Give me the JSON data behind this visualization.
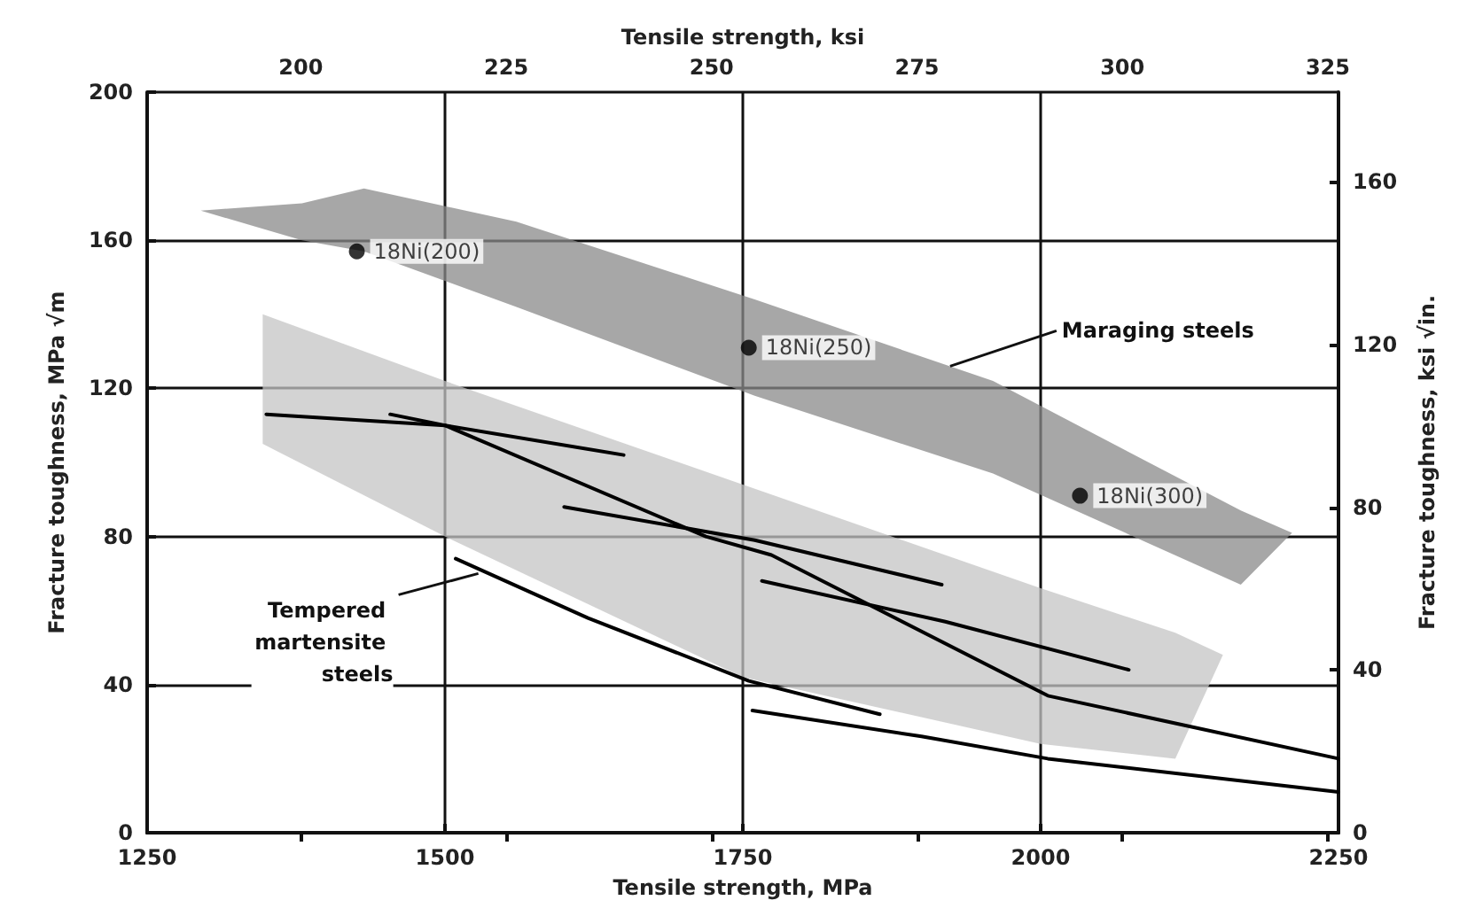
{
  "chart_data": {
    "type": "line",
    "xlabel": "Tensile strength, MPa",
    "x2label": "Tensile strength, ksi",
    "ylabel": "Fracture toughness, MPa √m",
    "y2label": "Fracture toughness, ksi √in.",
    "xlim": [
      1250,
      2250
    ],
    "xticks": [
      1250,
      1500,
      1750,
      2000,
      2250
    ],
    "x2lim": [
      181.3,
      326.3
    ],
    "x2ticks": [
      200,
      225,
      250,
      275,
      300,
      325
    ],
    "ylim": [
      0,
      200
    ],
    "yticks": [
      0,
      40,
      80,
      120,
      160,
      200
    ],
    "y2lim": [
      0,
      182
    ],
    "y2ticks": [
      0,
      40,
      80,
      120,
      160
    ],
    "grid": true,
    "legend": false,
    "marker": "none",
    "line_style": "solid",
    "series": [
      {
        "type": "area",
        "color": "#8a8a8a",
        "x": [
          1295,
          1380,
          1432,
          1560,
          1760,
          1960,
          2168,
          2211
        ],
        "values": [
          null,
          null,
          null,
          null,
          null,
          null,
          null,
          null
        ],
        "upper": [
          168,
          170,
          174,
          165,
          144,
          122,
          87,
          81
        ],
        "lower": [
          168,
          160,
          157,
          142,
          118,
          97,
          67,
          81
        ]
      },
      {
        "type": "area",
        "color": "#c4c4c4",
        "x": [
          1347,
          1500,
          1750,
          2000,
          2113,
          2153
        ],
        "values": [
          null,
          null,
          null,
          null,
          null,
          null
        ],
        "upper": [
          140,
          122,
          94,
          66,
          54,
          48
        ],
        "lower": [
          105,
          80,
          42,
          24,
          20,
          48
        ]
      },
      {
        "color": "#000000",
        "x": [
          1350,
          1500,
          1650
        ],
        "values": [
          113,
          110,
          102
        ]
      },
      {
        "color": "#000000",
        "x": [
          1454,
          1500,
          1719,
          1774,
          2006,
          2250
        ],
        "values": [
          113,
          110,
          80,
          75,
          37,
          20
        ]
      },
      {
        "color": "#000000",
        "x": [
          1600,
          1760,
          1917
        ],
        "values": [
          88,
          79,
          67
        ]
      },
      {
        "color": "#000000",
        "x": [
          1766,
          1920,
          2074
        ],
        "values": [
          68,
          57,
          44
        ]
      },
      {
        "color": "#000000",
        "x": [
          1509,
          1620,
          1755,
          1865
        ],
        "values": [
          74,
          58,
          41,
          32
        ]
      },
      {
        "color": "#000000",
        "x": [
          1758,
          1900,
          2006,
          2250
        ],
        "values": [
          33,
          26,
          20,
          11
        ]
      },
      {
        "type": "scatter",
        "name": "18Ni(200)",
        "marker": "circle",
        "color": "#000000",
        "x": [
          1426
        ],
        "values": [
          157
        ]
      },
      {
        "type": "scatter",
        "name": "18Ni(250)",
        "marker": "circle",
        "color": "#000000",
        "x": [
          1755
        ],
        "values": [
          131
        ]
      },
      {
        "type": "scatter",
        "name": "18Ni(300)",
        "marker": "circle",
        "color": "#000000",
        "x": [
          2033
        ],
        "values": [
          91
        ]
      }
    ],
    "annotations": [
      {
        "text": "Maraging steels",
        "x": 1924,
        "y": 126
      },
      {
        "text": "Tempered martensite steels",
        "x": 1528,
        "y": 70
      }
    ]
  }
}
